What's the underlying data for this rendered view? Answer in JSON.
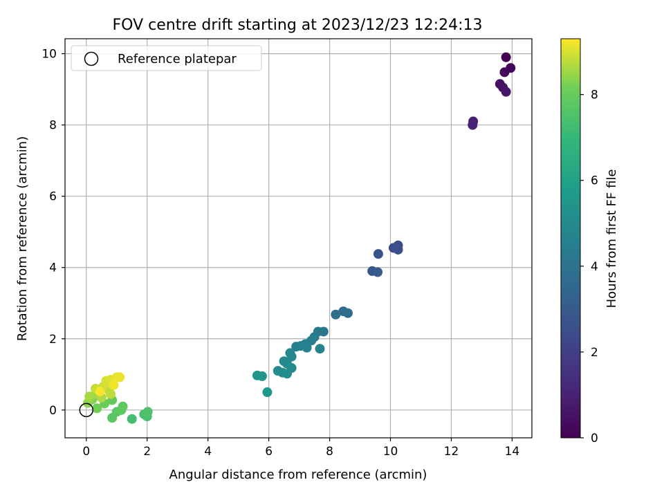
{
  "chart_data": {
    "type": "scatter",
    "title": "FOV centre drift starting at 2023/12/23 12:24:13",
    "xlabel": "Angular distance from reference (arcmin)",
    "ylabel": "Rotation from reference (arcmin)",
    "xlim": [
      -0.7,
      14.65
    ],
    "ylim": [
      -0.78,
      10.42
    ],
    "xticks": [
      0,
      2,
      4,
      6,
      8,
      10,
      12,
      14
    ],
    "yticks": [
      0,
      2,
      4,
      6,
      8,
      10
    ],
    "grid": true,
    "legend": {
      "placement": "top-left",
      "entries": [
        "Reference platepar"
      ]
    },
    "reference_point": {
      "x": 0,
      "y": 0
    },
    "colorbar": {
      "label": "Hours from first FF file",
      "range": [
        0,
        9.3
      ],
      "ticks": [
        0,
        2,
        4,
        6,
        8
      ],
      "colormap": "viridis"
    },
    "points": [
      {
        "x": 13.8,
        "y": 9.9,
        "t": 0.05
      },
      {
        "x": 13.95,
        "y": 9.6,
        "t": 0.15
      },
      {
        "x": 13.75,
        "y": 9.48,
        "t": 0.25
      },
      {
        "x": 13.6,
        "y": 9.15,
        "t": 0.45
      },
      {
        "x": 13.7,
        "y": 9.05,
        "t": 0.55
      },
      {
        "x": 13.8,
        "y": 8.93,
        "t": 0.65
      },
      {
        "x": 12.72,
        "y": 8.1,
        "t": 0.9
      },
      {
        "x": 12.7,
        "y": 8.0,
        "t": 1.0
      },
      {
        "x": 10.25,
        "y": 4.62,
        "t": 2.4
      },
      {
        "x": 10.1,
        "y": 4.55,
        "t": 2.5
      },
      {
        "x": 10.25,
        "y": 4.5,
        "t": 2.6
      },
      {
        "x": 9.6,
        "y": 4.38,
        "t": 2.7
      },
      {
        "x": 9.4,
        "y": 3.9,
        "t": 2.9
      },
      {
        "x": 9.58,
        "y": 3.87,
        "t": 3.0
      },
      {
        "x": 8.45,
        "y": 2.77,
        "t": 3.6
      },
      {
        "x": 8.6,
        "y": 2.72,
        "t": 3.7
      },
      {
        "x": 8.2,
        "y": 2.68,
        "t": 3.8
      },
      {
        "x": 7.8,
        "y": 2.2,
        "t": 4.1
      },
      {
        "x": 7.62,
        "y": 2.2,
        "t": 4.2
      },
      {
        "x": 7.5,
        "y": 2.05,
        "t": 4.3
      },
      {
        "x": 7.4,
        "y": 1.95,
        "t": 4.4
      },
      {
        "x": 7.2,
        "y": 1.85,
        "t": 4.5
      },
      {
        "x": 7.05,
        "y": 1.8,
        "t": 4.55
      },
      {
        "x": 6.9,
        "y": 1.78,
        "t": 4.6
      },
      {
        "x": 7.25,
        "y": 1.75,
        "t": 4.65
      },
      {
        "x": 7.68,
        "y": 1.72,
        "t": 4.7
      },
      {
        "x": 6.7,
        "y": 1.6,
        "t": 4.8
      },
      {
        "x": 6.75,
        "y": 1.5,
        "t": 4.85
      },
      {
        "x": 6.5,
        "y": 1.37,
        "t": 4.9
      },
      {
        "x": 6.6,
        "y": 1.3,
        "t": 4.95
      },
      {
        "x": 6.75,
        "y": 1.18,
        "t": 5.0
      },
      {
        "x": 6.3,
        "y": 1.1,
        "t": 5.05
      },
      {
        "x": 6.45,
        "y": 1.05,
        "t": 5.1
      },
      {
        "x": 6.6,
        "y": 1.02,
        "t": 5.15
      },
      {
        "x": 5.62,
        "y": 0.97,
        "t": 5.4
      },
      {
        "x": 5.78,
        "y": 0.95,
        "t": 5.45
      },
      {
        "x": 5.95,
        "y": 0.5,
        "t": 5.6
      },
      {
        "x": 1.5,
        "y": -0.25,
        "t": 7.3
      },
      {
        "x": 2.0,
        "y": -0.18,
        "t": 7.4
      },
      {
        "x": 1.9,
        "y": -0.12,
        "t": 7.45
      },
      {
        "x": 2.02,
        "y": -0.05,
        "t": 7.5
      },
      {
        "x": 0.85,
        "y": -0.22,
        "t": 7.7
      },
      {
        "x": 1.0,
        "y": -0.05,
        "t": 7.75
      },
      {
        "x": 1.15,
        "y": 0.0,
        "t": 7.8
      },
      {
        "x": 1.2,
        "y": 0.1,
        "t": 7.85
      },
      {
        "x": 0.85,
        "y": 0.28,
        "t": 7.95
      },
      {
        "x": 0.6,
        "y": 0.18,
        "t": 8.05
      },
      {
        "x": 0.35,
        "y": 0.05,
        "t": 8.15
      },
      {
        "x": 0.2,
        "y": 0.3,
        "t": 8.3
      },
      {
        "x": 0.05,
        "y": 0.2,
        "t": 8.4
      },
      {
        "x": 0.3,
        "y": 0.45,
        "t": 8.5
      },
      {
        "x": 0.1,
        "y": 0.38,
        "t": 8.6
      },
      {
        "x": 0.5,
        "y": 0.35,
        "t": 8.65
      },
      {
        "x": 0.75,
        "y": 0.55,
        "t": 8.75
      },
      {
        "x": 0.8,
        "y": 0.45,
        "t": 8.8
      },
      {
        "x": 0.3,
        "y": 0.6,
        "t": 8.85
      },
      {
        "x": 0.55,
        "y": 0.65,
        "t": 8.9
      },
      {
        "x": 0.7,
        "y": 0.75,
        "t": 8.95
      },
      {
        "x": 0.65,
        "y": 0.82,
        "t": 9.0
      },
      {
        "x": 0.8,
        "y": 0.85,
        "t": 9.05
      },
      {
        "x": 1.0,
        "y": 0.92,
        "t": 9.1
      },
      {
        "x": 1.1,
        "y": 0.92,
        "t": 9.15
      },
      {
        "x": 0.9,
        "y": 0.7,
        "t": 9.2
      },
      {
        "x": 0.45,
        "y": 0.52,
        "t": 9.25
      }
    ]
  }
}
